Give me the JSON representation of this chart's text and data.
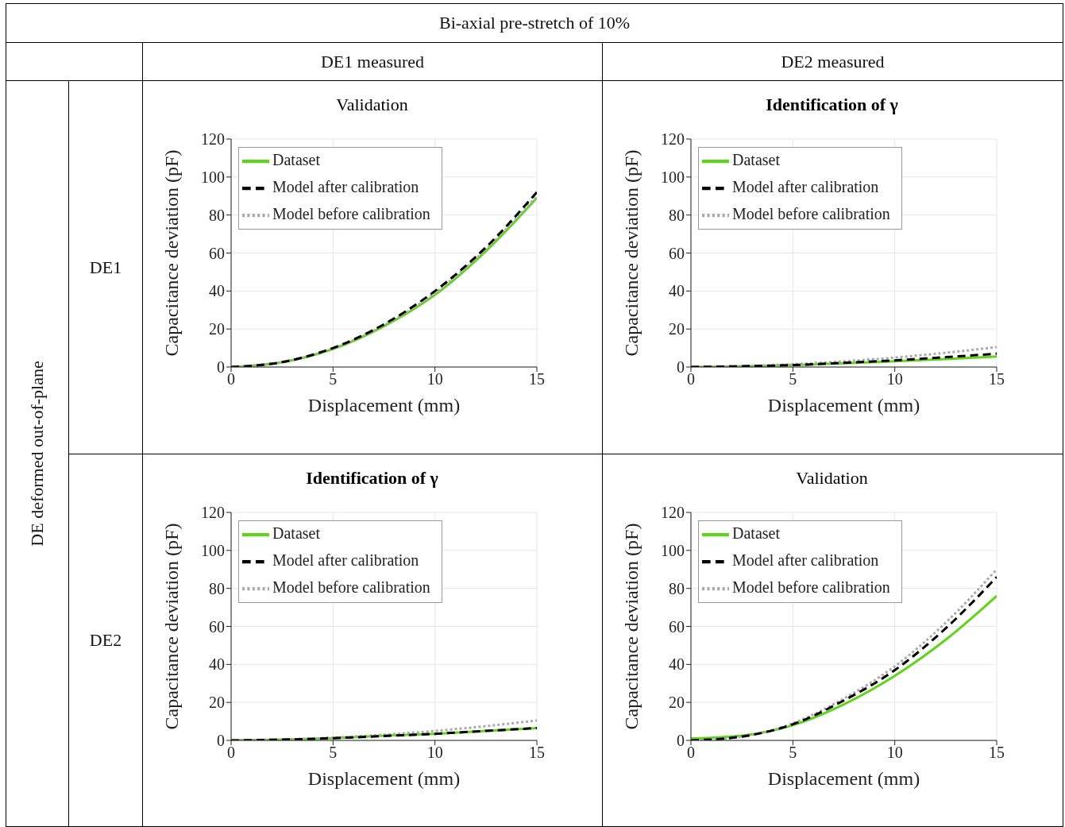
{
  "chart_data": [
    {
      "type": "line",
      "title": "Validation",
      "xlabel": "Displacement (mm)",
      "ylabel": "Capacitance deviation (pF)",
      "annotations": [
        "Bi-axial pre-stretch of 10%",
        "DE1 measured",
        "DE deformed out-of-plane",
        "DE1"
      ],
      "x": [
        0,
        2.5,
        5,
        7.5,
        10,
        12.5,
        15
      ],
      "xlim": [
        0,
        15
      ],
      "xticks": [
        0,
        5,
        10,
        15
      ],
      "ylim": [
        0,
        120
      ],
      "yticks": [
        0,
        20,
        40,
        60,
        80,
        100,
        120
      ],
      "grid": true,
      "legend": "top left",
      "series": [
        {
          "name": "Dataset",
          "color": "#5fd41a",
          "line_style": "solid",
          "values": [
            0,
            2.5,
            9.5,
            21.5,
            38,
            61,
            89
          ]
        },
        {
          "name": "Model before calibration",
          "color": "#aaaaaa",
          "line_style": "dotted",
          "values": [
            0,
            2.5,
            9.8,
            22,
            39,
            62,
            90
          ]
        },
        {
          "name": "Model after calibration",
          "color": "#000000",
          "line_style": "dashed",
          "values": [
            0,
            2.6,
            10,
            22.5,
            40,
            63,
            92
          ]
        }
      ]
    },
    {
      "type": "line",
      "title": "Identification of γ",
      "xlabel": "Displacement (mm)",
      "ylabel": "Capacitance deviation (pF)",
      "annotations": [
        "DE2 measured"
      ],
      "x": [
        0,
        2.5,
        5,
        7.5,
        10,
        12.5,
        15
      ],
      "xlim": [
        0,
        15
      ],
      "xticks": [
        0,
        5,
        10,
        15
      ],
      "ylim": [
        0,
        120
      ],
      "yticks": [
        0,
        20,
        40,
        60,
        80,
        100,
        120
      ],
      "grid": true,
      "legend": "top left",
      "series": [
        {
          "name": "Dataset",
          "color": "#5fd41a",
          "line_style": "solid",
          "values": [
            0,
            0.3,
            1,
            2,
            3,
            4.2,
            5.5
          ]
        },
        {
          "name": "Model before calibration",
          "color": "#aaaaaa",
          "line_style": "dotted",
          "values": [
            0,
            0.5,
            1.5,
            3,
            5,
            7.5,
            10.5
          ]
        },
        {
          "name": "Model after calibration",
          "color": "#000000",
          "line_style": "dashed",
          "values": [
            0,
            0.4,
            1,
            2.2,
            3.5,
            5.2,
            7
          ]
        }
      ]
    },
    {
      "type": "line",
      "title": "Identification of γ",
      "xlabel": "Displacement (mm)",
      "ylabel": "Capacitance deviation (pF)",
      "annotations": [
        "DE2"
      ],
      "x": [
        0,
        2.5,
        5,
        7.5,
        10,
        12.5,
        15
      ],
      "xlim": [
        0,
        15
      ],
      "xticks": [
        0,
        5,
        10,
        15
      ],
      "ylim": [
        0,
        120
      ],
      "yticks": [
        0,
        20,
        40,
        60,
        80,
        100,
        120
      ],
      "grid": true,
      "legend": "top left",
      "series": [
        {
          "name": "Dataset",
          "color": "#5fd41a",
          "line_style": "solid",
          "values": [
            0,
            0.4,
            1.2,
            2.5,
            3.5,
            5,
            6.5
          ]
        },
        {
          "name": "Model before calibration",
          "color": "#aaaaaa",
          "line_style": "dotted",
          "values": [
            0,
            0.5,
            1.5,
            3,
            5,
            7.5,
            10.5
          ]
        },
        {
          "name": "Model after calibration",
          "color": "#000000",
          "line_style": "dashed",
          "values": [
            0,
            0.4,
            1.2,
            2.3,
            3.5,
            5,
            6.5
          ]
        }
      ]
    },
    {
      "type": "line",
      "title": "Validation",
      "xlabel": "Displacement (mm)",
      "ylabel": "Capacitance deviation (pF)",
      "x": [
        0,
        2.5,
        5,
        7.5,
        10,
        12.5,
        15
      ],
      "xlim": [
        0,
        15
      ],
      "xticks": [
        0,
        5,
        10,
        15
      ],
      "ylim": [
        0,
        120
      ],
      "yticks": [
        0,
        20,
        40,
        60,
        80,
        100,
        120
      ],
      "grid": true,
      "legend": "top left",
      "series": [
        {
          "name": "Dataset",
          "color": "#5fd41a",
          "line_style": "solid",
          "values": [
            1,
            2.5,
            8,
            19,
            34,
            53,
            76
          ]
        },
        {
          "name": "Model before calibration",
          "color": "#aaaaaa",
          "line_style": "dotted",
          "values": [
            0,
            2,
            9,
            22,
            39,
            62,
            90
          ]
        },
        {
          "name": "Model after calibration",
          "color": "#000000",
          "line_style": "dashed",
          "values": [
            0,
            2,
            8.5,
            21,
            37,
            59,
            86
          ]
        }
      ]
    }
  ]
}
